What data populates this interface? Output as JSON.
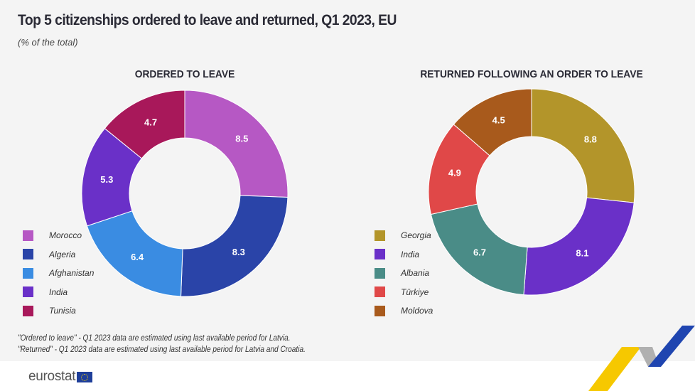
{
  "title": "Top 5 citizenships ordered to leave and returned, Q1 2023, EU",
  "subtitle": "(% of the total)",
  "chart_data": [
    {
      "type": "pie",
      "variant": "donut",
      "title": "ORDERED TO LEAVE",
      "categories": [
        "Morocco",
        "Algeria",
        "Afghanistan",
        "India",
        "Tunisia"
      ],
      "values": [
        8.5,
        8.3,
        6.4,
        5.3,
        4.7
      ],
      "colors": [
        "#b658c4",
        "#2a44a8",
        "#3a8ce2",
        "#6a30c8",
        "#a8185a"
      ],
      "legend": "bottom-left"
    },
    {
      "type": "pie",
      "variant": "donut",
      "title": "RETURNED FOLLOWING AN ORDER TO LEAVE",
      "categories": [
        "Georgia",
        "India",
        "Albania",
        "Türkiye",
        "Moldova"
      ],
      "values": [
        8.8,
        8.1,
        6.7,
        4.9,
        4.5
      ],
      "colors": [
        "#b3952a",
        "#6a30c8",
        "#4a8c87",
        "#e04848",
        "#a85a1c"
      ],
      "legend": "bottom-left"
    }
  ],
  "notes": [
    "\"Ordered to leave\" - Q1 2023 data are estimated using last available period for Latvia.",
    "\"Returned\" - Q1 2023 data are estimated using last available period for Latvia and Croatia."
  ],
  "logo": "eurostat"
}
